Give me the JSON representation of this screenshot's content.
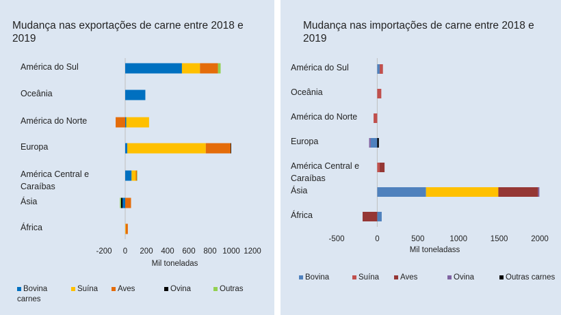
{
  "chart_data": [
    {
      "type": "bar",
      "orientation": "horizontal",
      "stacked": true,
      "title": "Mudança nas exportações de carne entre 2018 e 2019",
      "categories": [
        "América do Sul",
        "Oceânia",
        "América do Norte",
        "Europa",
        "América Central e Caraíbas",
        "Ásia",
        "África"
      ],
      "series": [
        {
          "name": "Bovina carnes",
          "color": "#0070c0",
          "values": [
            535,
            190,
            10,
            20,
            60,
            -25,
            0
          ]
        },
        {
          "name": "Suína",
          "color": "#ffc000",
          "values": [
            170,
            0,
            215,
            740,
            40,
            0,
            5
          ]
        },
        {
          "name": "Aves",
          "color": "#e46c0a",
          "values": [
            170,
            0,
            -90,
            235,
            10,
            55,
            20
          ]
        },
        {
          "name": "Ovina",
          "color": "#000000",
          "values": [
            0,
            0,
            0,
            5,
            0,
            -15,
            0
          ]
        },
        {
          "name": "Outras",
          "color": "#92d050",
          "values": [
            25,
            0,
            0,
            0,
            5,
            -10,
            0
          ]
        }
      ],
      "xlim": [
        -200,
        1200
      ],
      "xticks": [
        -200,
        0,
        200,
        400,
        600,
        800,
        1000,
        1200
      ],
      "x_label": "Mil toneladas"
    },
    {
      "type": "bar",
      "orientation": "horizontal",
      "stacked": true,
      "title": "Mudança nas importações de carne entre 2018 e 2019",
      "categories": [
        "América do Sul",
        "Oceânia",
        "América do Norte",
        "Europa",
        "América Central e Caraíbas",
        "Ásia",
        "África"
      ],
      "series": [
        {
          "name": "Bovina",
          "color": "#4f81bd",
          "values": [
            30,
            0,
            0,
            -80,
            0,
            600,
            55
          ]
        },
        {
          "name": "Suína",
          "color": "#c0504d",
          "point_colors": [
            "#c0504d",
            "#c0504d",
            "#c0504d",
            "#c0504d",
            "#c0504d",
            "#ffc000",
            "#c0504d"
          ],
          "values": [
            40,
            50,
            -45,
            0,
            30,
            890,
            0
          ]
        },
        {
          "name": "Aves",
          "color": "#953735",
          "values": [
            0,
            0,
            0,
            0,
            60,
            490,
            -180
          ]
        },
        {
          "name": "Ovina",
          "color": "#8064a2",
          "values": [
            0,
            0,
            0,
            -20,
            0,
            15,
            0
          ]
        },
        {
          "name": "Outras carnes",
          "color": "#000000",
          "values": [
            0,
            0,
            0,
            20,
            0,
            0,
            0
          ]
        }
      ],
      "xlim": [
        -500,
        2000
      ],
      "xticks": [
        -500,
        0,
        500,
        1000,
        1500,
        2000
      ],
      "x_label": "Mil toneladass"
    }
  ]
}
